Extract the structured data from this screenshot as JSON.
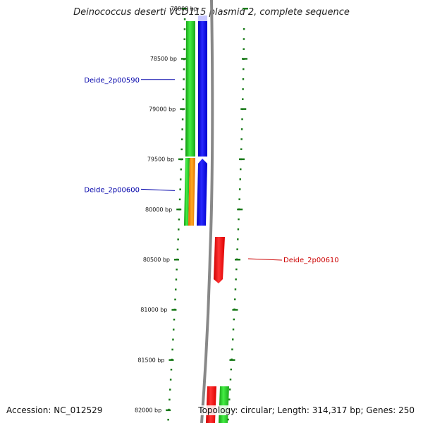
{
  "title": "Deinococcus deserti VCD115 plasmid 2, complete sequence",
  "footer": {
    "accession": "Accession: NC_012529",
    "summary": "Topology: circular; Length: 314,317 bp; Genes: 250"
  },
  "ticks": [
    {
      "label": "78000 bp",
      "bp": 78000
    },
    {
      "label": "78500 bp",
      "bp": 78500
    },
    {
      "label": "79000 bp",
      "bp": 79000
    },
    {
      "label": "79500 bp",
      "bp": 79500
    },
    {
      "label": "80000 bp",
      "bp": 80000
    },
    {
      "label": "80500 bp",
      "bp": 80500
    },
    {
      "label": "81000 bp",
      "bp": 81000
    },
    {
      "label": "81500 bp",
      "bp": 81500
    },
    {
      "label": "82000 bp",
      "bp": 82000
    }
  ],
  "gene_labels": [
    {
      "name": "Deide_2p00590",
      "color": "#0000aa",
      "side": "left",
      "bp": 78750
    },
    {
      "name": "Deide_2p00600",
      "color": "#0000aa",
      "side": "left",
      "bp": 79800
    },
    {
      "name": "Deide_2p00610",
      "color": "#cc0000",
      "side": "right",
      "bp": 80500
    }
  ],
  "colors": {
    "backbone": "#808080",
    "tick": "#1a7a1a",
    "gene_green": "#22cc22",
    "gene_blue": "#0000ff",
    "gene_orange": "#ff8800",
    "gene_red": "#ff0000"
  }
}
